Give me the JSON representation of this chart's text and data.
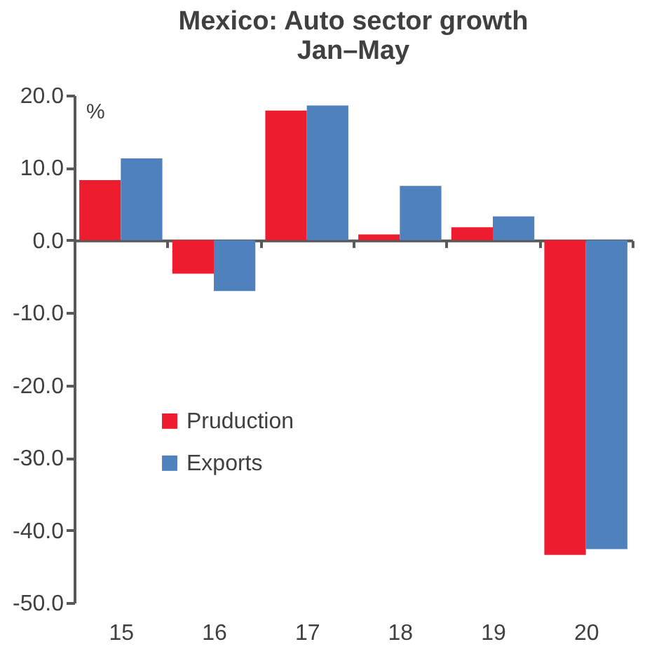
{
  "chart_data": {
    "type": "bar",
    "title": [
      "Mexico: Auto sector growth",
      "Jan–May"
    ],
    "ylabel": "%",
    "categories": [
      "15",
      "16",
      "17",
      "18",
      "19",
      "20"
    ],
    "series": [
      {
        "name": "Pruduction",
        "color": "#ed1c2e",
        "values": [
          8.3,
          -4.6,
          17.9,
          0.8,
          1.8,
          -43.4
        ]
      },
      {
        "name": "Exports",
        "color": "#4f81bd",
        "values": [
          11.3,
          -7.0,
          18.6,
          7.5,
          3.3,
          -42.6
        ]
      }
    ],
    "ylim": [
      -50,
      20
    ],
    "yticks": [
      {
        "value": -50,
        "label": "-50.0"
      },
      {
        "value": -40,
        "label": "-40.0"
      },
      {
        "value": -30,
        "label": "-30.0"
      },
      {
        "value": -20,
        "label": "-20.0"
      },
      {
        "value": -10,
        "label": "-10.0"
      },
      {
        "value": 0,
        "label": "0.0"
      },
      {
        "value": 10,
        "label": "10.0"
      },
      {
        "value": 20,
        "label": "20.0"
      }
    ],
    "legend": "left"
  }
}
